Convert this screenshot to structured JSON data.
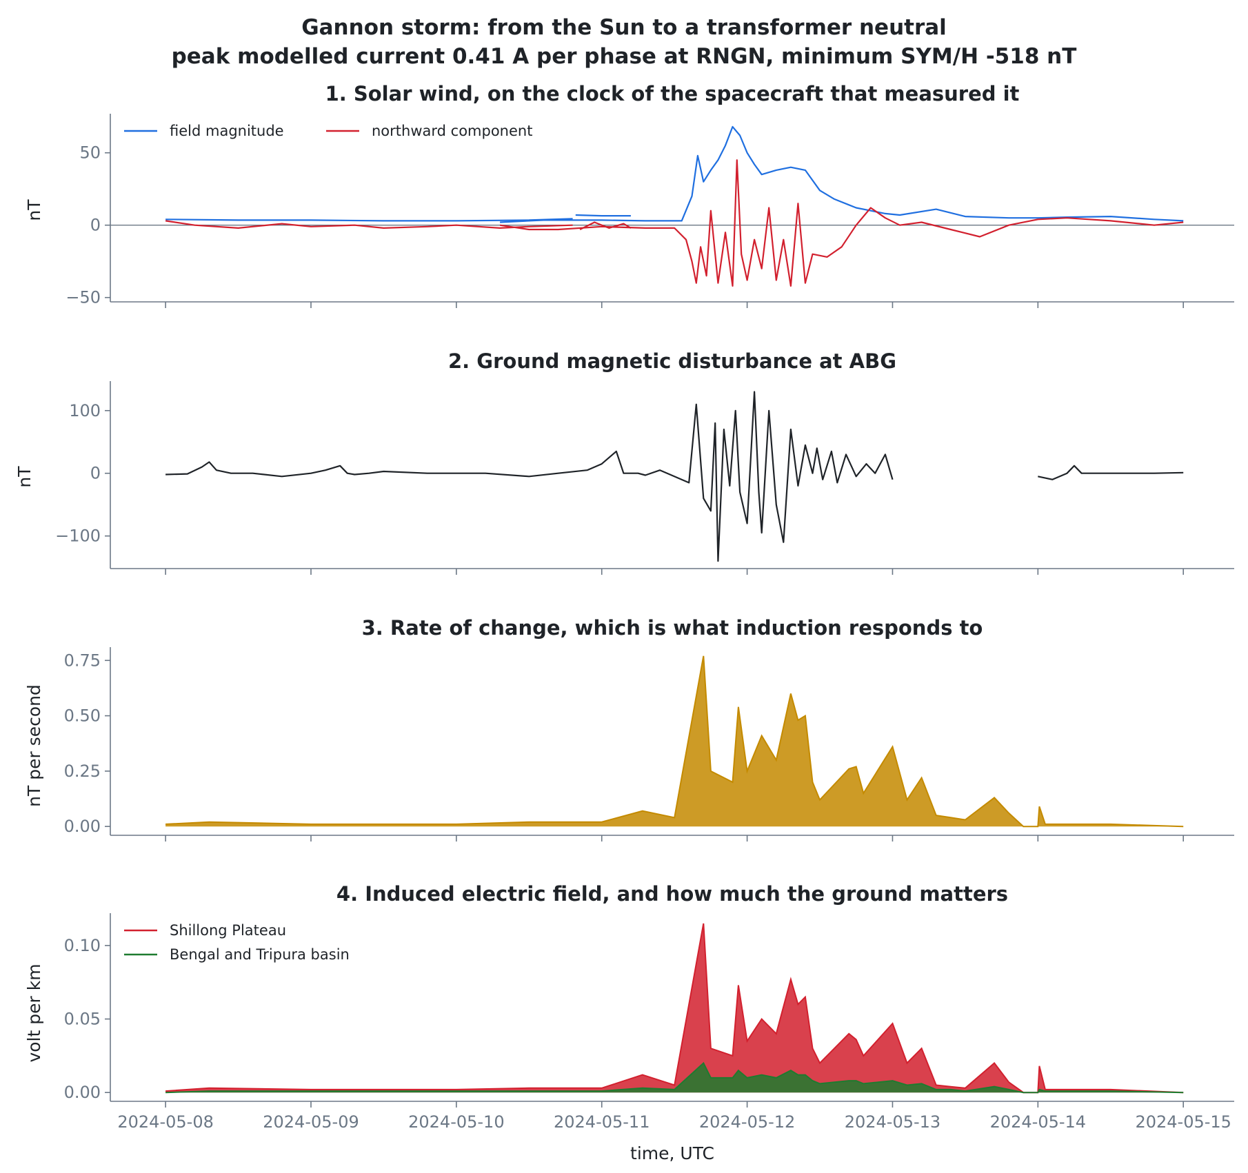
{
  "figure": {
    "title_line1": "Gannon storm: from the Sun to a transformer neutral",
    "title_line2": "peak modelled current 0.41 A per phase at RNGN, minimum SYM/H -518 nT",
    "xlabel": "time, UTC",
    "x_tick_labels": [
      "2024-05-08",
      "2024-05-09",
      "2024-05-10",
      "2024-05-11",
      "2024-05-12",
      "2024-05-13",
      "2024-05-14",
      "2024-05-15"
    ]
  },
  "colors": {
    "field_magnitude": "#1f6fe0",
    "northward_component": "#d2202e",
    "ground_disturbance": "#1f2328",
    "rate_of_change": "#c48a00",
    "shillong": "#d2202e",
    "bengal": "#1e7b2f",
    "axis": "#6b7785"
  },
  "chart_data": [
    {
      "type": "line",
      "title": "1. Solar wind, on the clock of the spacecraft that measured it",
      "xlabel": "",
      "ylabel": "nT",
      "x_unit": "days since 2024-05-08 00:00 UTC",
      "xlim": [
        -0.38,
        7.35
      ],
      "ylim": [
        -53,
        77
      ],
      "yticks": [
        -50,
        0,
        50
      ],
      "ytick_labels": [
        "−50",
        "0",
        "50"
      ],
      "zero_line": true,
      "grid": false,
      "legend": "top-left",
      "series": [
        {
          "name": "field magnitude",
          "segments": [
            {
              "x": [
                0,
                0.5,
                1,
                1.5,
                2,
                2.5,
                2.8
              ],
              "y": [
                4,
                3.5,
                3.5,
                3,
                3,
                3.5,
                4.5
              ]
            },
            {
              "x": [
                2.82,
                3.0,
                3.2
              ],
              "y": [
                7,
                6.5,
                6.5
              ]
            },
            {
              "x": [
                2.3,
                2.6,
                3.0,
                3.3,
                3.55,
                3.62,
                3.66,
                3.7,
                3.75,
                3.8,
                3.85,
                3.9,
                3.95,
                4.0,
                4.05,
                4.1,
                4.2,
                4.3,
                4.4,
                4.5,
                4.6,
                4.7,
                4.75,
                4.85,
                4.95,
                5.05,
                5.3,
                5.5,
                5.8,
                6.0,
                6.2,
                6.5,
                6.8,
                7.0
              ],
              "y": [
                2,
                3.5,
                3.5,
                3,
                3,
                20,
                48,
                30,
                38,
                45,
                55,
                68,
                62,
                50,
                42,
                35,
                38,
                40,
                38,
                24,
                18,
                14,
                12,
                10,
                8,
                7,
                11,
                6,
                5,
                5,
                5.5,
                6,
                4,
                3
              ]
            }
          ]
        },
        {
          "name": "northward component",
          "segments": [
            {
              "x": [
                0,
                0.2,
                0.5,
                0.8,
                1.0,
                1.3,
                1.5,
                1.8,
                2.0,
                2.3,
                2.5,
                2.8
              ],
              "y": [
                3,
                0,
                -2,
                1,
                -1,
                0,
                -2,
                -1,
                0,
                -2,
                -1,
                0
              ]
            },
            {
              "x": [
                2.85,
                2.95,
                3.05,
                3.15,
                3.2
              ],
              "y": [
                -3,
                2,
                -2,
                1,
                -2
              ]
            },
            {
              "x": [
                2.3,
                2.5,
                2.7,
                3.0,
                3.3,
                3.5,
                3.58,
                3.62,
                3.65,
                3.68,
                3.72,
                3.75,
                3.8,
                3.85,
                3.9,
                3.93,
                3.96,
                4.0,
                4.05,
                4.1,
                4.15,
                4.2,
                4.25,
                4.3,
                4.35,
                4.4,
                4.45,
                4.55,
                4.65,
                4.75,
                4.85,
                4.95,
                5.05,
                5.2,
                5.4,
                5.6,
                5.8,
                6.0,
                6.2,
                6.5,
                6.8,
                7.0
              ],
              "y": [
                0,
                -3,
                -3,
                -1,
                -2,
                -2,
                -10,
                -25,
                -40,
                -15,
                -35,
                10,
                -40,
                -5,
                -42,
                45,
                -20,
                -38,
                -10,
                -30,
                12,
                -38,
                -10,
                -42,
                15,
                -40,
                -20,
                -22,
                -15,
                0,
                12,
                5,
                0,
                2,
                -3,
                -8,
                0,
                4,
                5,
                3,
                0,
                2
              ]
            }
          ]
        }
      ]
    },
    {
      "type": "line",
      "title": "2. Ground magnetic disturbance at ABG",
      "xlabel": "",
      "ylabel": "nT",
      "x_unit": "days since 2024-05-08 00:00 UTC",
      "xlim": [
        -0.38,
        7.35
      ],
      "ylim": [
        -152,
        147
      ],
      "yticks": [
        -100,
        0,
        100
      ],
      "ytick_labels": [
        "−100",
        "0",
        "100"
      ],
      "grid": false,
      "legend": "none",
      "series": [
        {
          "name": "",
          "segments": [
            {
              "x": [
                0,
                0.15,
                0.25,
                0.3,
                0.35,
                0.45,
                0.6,
                0.8,
                1.0,
                1.1,
                1.2,
                1.25,
                1.3,
                1.4,
                1.5,
                1.8,
                2.0,
                2.2,
                2.5,
                2.7,
                2.9,
                3.0,
                3.1,
                3.15,
                3.2,
                3.25,
                3.3,
                3.4,
                3.6,
                3.65,
                3.7,
                3.75,
                3.78,
                3.8,
                3.84,
                3.88,
                3.92,
                3.95,
                4.0,
                4.05,
                4.08,
                4.1,
                4.15,
                4.2,
                4.25,
                4.3,
                4.35,
                4.4,
                4.45,
                4.48,
                4.52,
                4.58,
                4.62,
                4.68,
                4.75,
                4.82,
                4.88,
                4.95,
                5.0
              ],
              "y": [
                -2,
                -1,
                10,
                18,
                5,
                0,
                0,
                -5,
                0,
                5,
                12,
                0,
                -2,
                0,
                3,
                0,
                0,
                0,
                -5,
                0,
                5,
                15,
                35,
                0,
                0,
                0,
                -3,
                5,
                -15,
                110,
                -40,
                -60,
                80,
                -140,
                70,
                -20,
                100,
                -30,
                -80,
                130,
                -30,
                -95,
                100,
                -50,
                -110,
                70,
                -20,
                45,
                0,
                40,
                -10,
                35,
                -15,
                30,
                -5,
                15,
                0,
                30,
                -10
              ]
            },
            {
              "x": [
                6.0,
                6.1,
                6.2,
                6.25,
                6.3,
                6.5,
                6.8,
                7.0
              ],
              "y": [
                -5,
                -10,
                0,
                12,
                0,
                0,
                0,
                1
              ]
            }
          ]
        }
      ]
    },
    {
      "type": "area",
      "title": "3. Rate of change, which is what induction responds to",
      "xlabel": "",
      "ylabel": "nT per second",
      "x_unit": "days since 2024-05-08 00:00 UTC",
      "xlim": [
        -0.38,
        7.35
      ],
      "ylim": [
        -0.04,
        0.81
      ],
      "yticks": [
        0,
        0.25,
        0.5,
        0.75
      ],
      "ytick_labels": [
        "0.00",
        "0.25",
        "0.50",
        "0.75"
      ],
      "grid": false,
      "legend": "none",
      "series": [
        {
          "name": "",
          "x": [
            0,
            0.3,
            1.0,
            1.5,
            2.0,
            2.5,
            2.8,
            3.0,
            3.28,
            3.5,
            3.7,
            3.75,
            3.9,
            3.94,
            4.0,
            4.1,
            4.2,
            4.3,
            4.35,
            4.4,
            4.45,
            4.5,
            4.7,
            4.75,
            4.8,
            5.0,
            5.1,
            5.2,
            5.3,
            5.4,
            5.5,
            5.7,
            5.8,
            5.9,
            5.95,
            6.0,
            6.01,
            6.05,
            6.5,
            7.0
          ],
          "y": [
            0.01,
            0.02,
            0.01,
            0.01,
            0.01,
            0.02,
            0.02,
            0.02,
            0.07,
            0.04,
            0.77,
            0.25,
            0.2,
            0.54,
            0.25,
            0.41,
            0.3,
            0.6,
            0.48,
            0.5,
            0.2,
            0.12,
            0.26,
            0.27,
            0.15,
            0.36,
            0.12,
            0.22,
            0.05,
            0.04,
            0.03,
            0.13,
            0.06,
            0.0,
            0.0,
            0.0,
            0.09,
            0.01,
            0.01,
            0.0
          ]
        }
      ]
    },
    {
      "type": "area",
      "title": "4. Induced electric field, and how much the ground matters",
      "xlabel": "time, UTC",
      "ylabel": "volt per km",
      "x_unit": "days since 2024-05-08 00:00 UTC",
      "xlim": [
        -0.38,
        7.35
      ],
      "ylim": [
        -0.006,
        0.122
      ],
      "yticks": [
        0,
        0.05,
        0.1
      ],
      "ytick_labels": [
        "0.00",
        "0.05",
        "0.10"
      ],
      "grid": false,
      "legend": "top-left",
      "series": [
        {
          "name": "Shillong Plateau",
          "x": [
            0,
            0.3,
            1.0,
            1.5,
            2.0,
            2.5,
            2.8,
            3.0,
            3.28,
            3.5,
            3.7,
            3.75,
            3.9,
            3.94,
            4.0,
            4.1,
            4.2,
            4.3,
            4.35,
            4.4,
            4.45,
            4.5,
            4.7,
            4.75,
            4.8,
            5.0,
            5.1,
            5.2,
            5.3,
            5.4,
            5.5,
            5.7,
            5.8,
            5.9,
            5.95,
            6.0,
            6.01,
            6.05,
            6.5,
            7.0
          ],
          "y": [
            0.001,
            0.003,
            0.002,
            0.002,
            0.002,
            0.003,
            0.003,
            0.003,
            0.012,
            0.005,
            0.115,
            0.03,
            0.025,
            0.073,
            0.035,
            0.05,
            0.04,
            0.077,
            0.06,
            0.065,
            0.03,
            0.02,
            0.04,
            0.036,
            0.025,
            0.047,
            0.02,
            0.03,
            0.005,
            0.004,
            0.003,
            0.02,
            0.007,
            0.0,
            0.0,
            0.0,
            0.018,
            0.002,
            0.002,
            0.0
          ]
        },
        {
          "name": "Bengal and Tripura basin",
          "x": [
            0,
            0.3,
            1.0,
            1.5,
            2.0,
            2.5,
            2.8,
            3.0,
            3.28,
            3.5,
            3.7,
            3.75,
            3.9,
            3.94,
            4.0,
            4.1,
            4.2,
            4.3,
            4.35,
            4.4,
            4.45,
            4.5,
            4.7,
            4.75,
            4.8,
            5.0,
            5.1,
            5.2,
            5.3,
            5.4,
            5.5,
            5.7,
            5.8,
            5.9,
            5.95,
            6.0,
            6.01,
            6.05,
            6.5,
            7.0
          ],
          "y": [
            0.0,
            0.001,
            0.001,
            0.001,
            0.001,
            0.001,
            0.001,
            0.001,
            0.003,
            0.002,
            0.02,
            0.01,
            0.01,
            0.015,
            0.01,
            0.012,
            0.01,
            0.015,
            0.012,
            0.012,
            0.008,
            0.006,
            0.008,
            0.008,
            0.006,
            0.008,
            0.005,
            0.006,
            0.002,
            0.002,
            0.001,
            0.004,
            0.002,
            0.0,
            0.0,
            0.0,
            0.002,
            0.001,
            0.001,
            0.0
          ]
        }
      ]
    }
  ]
}
